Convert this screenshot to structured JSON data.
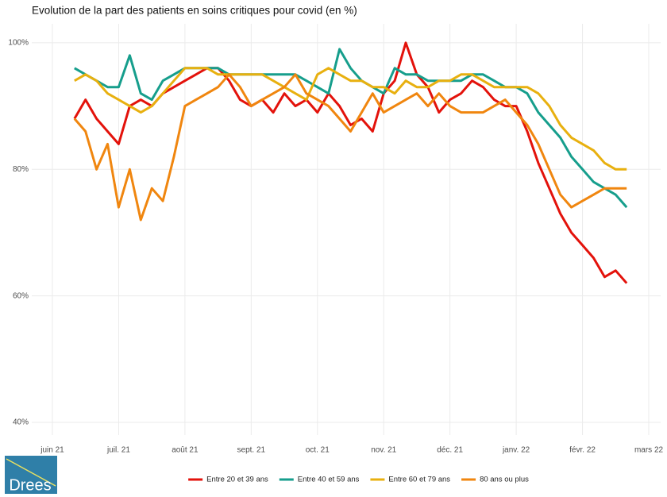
{
  "chart_data": {
    "type": "line",
    "title": "Evolution de la part des patients en soins critiques pour covid (en %)",
    "categories": [
      "juin 21",
      null,
      null,
      null,
      null,
      null,
      "juil. 21",
      null,
      null,
      null,
      null,
      null,
      "août 21",
      null,
      null,
      null,
      null,
      null,
      "sept. 21",
      null,
      null,
      null,
      null,
      null,
      "oct. 21",
      null,
      null,
      null,
      null,
      null,
      "nov. 21",
      null,
      null,
      null,
      null,
      null,
      "déc. 21",
      null,
      null,
      null,
      null,
      null,
      "janv. 22",
      null,
      null,
      null,
      null,
      null,
      "févr. 22",
      null,
      null,
      null,
      null,
      null,
      "mars 22"
    ],
    "ylim": [
      38,
      103
    ],
    "yticks": [
      {
        "value": 40,
        "label": "40%"
      },
      {
        "value": 60,
        "label": "60%"
      },
      {
        "value": 80,
        "label": "80%"
      },
      {
        "value": 100,
        "label": "100%"
      }
    ],
    "grid": true,
    "legend": "bottom",
    "series": [
      {
        "name": "Entre 20 et 39 ans",
        "color": "#e3120b",
        "values": [
          null,
          null,
          88,
          91,
          88,
          86,
          84,
          90,
          91,
          90,
          92,
          93,
          94,
          95,
          96,
          96,
          94,
          91,
          90,
          91,
          89,
          92,
          90,
          91,
          89,
          92,
          90,
          87,
          88,
          86,
          92,
          94,
          100,
          95,
          93,
          89,
          91,
          92,
          94,
          93,
          91,
          90,
          90,
          86,
          81,
          77,
          73,
          70,
          68,
          66,
          63,
          64,
          62,
          null,
          null
        ]
      },
      {
        "name": "Entre 40 et 59 ans",
        "color": "#169e8c",
        "values": [
          null,
          null,
          96,
          95,
          94,
          93,
          93,
          98,
          92,
          91,
          94,
          95,
          96,
          96,
          96,
          96,
          95,
          95,
          95,
          95,
          95,
          95,
          95,
          94,
          93,
          92,
          99,
          96,
          94,
          93,
          92,
          96,
          95,
          95,
          94,
          94,
          94,
          94,
          95,
          95,
          94,
          93,
          93,
          92,
          89,
          87,
          85,
          82,
          80,
          78,
          77,
          76,
          74,
          null,
          null
        ]
      },
      {
        "name": "Entre 60 et 79 ans",
        "color": "#e8b00f",
        "values": [
          null,
          null,
          94,
          95,
          94,
          92,
          91,
          90,
          89,
          90,
          92,
          94,
          96,
          96,
          96,
          95,
          95,
          95,
          95,
          95,
          94,
          93,
          92,
          91,
          95,
          96,
          95,
          94,
          94,
          93,
          93,
          92,
          94,
          93,
          93,
          94,
          94,
          95,
          95,
          94,
          93,
          93,
          93,
          93,
          92,
          90,
          87,
          85,
          84,
          83,
          81,
          80,
          80,
          null,
          null
        ]
      },
      {
        "name": "80 ans ou plus",
        "color": "#f0860f",
        "values": [
          null,
          null,
          88,
          86,
          80,
          84,
          74,
          80,
          72,
          77,
          75,
          82,
          90,
          91,
          92,
          93,
          95,
          93,
          90,
          91,
          92,
          93,
          95,
          92,
          91,
          90,
          88,
          86,
          89,
          92,
          89,
          90,
          91,
          92,
          90,
          92,
          90,
          89,
          89,
          89,
          90,
          91,
          89,
          87,
          84,
          80,
          76,
          74,
          75,
          76,
          77,
          77,
          77,
          null,
          null
        ]
      }
    ]
  },
  "logo": "Drees"
}
